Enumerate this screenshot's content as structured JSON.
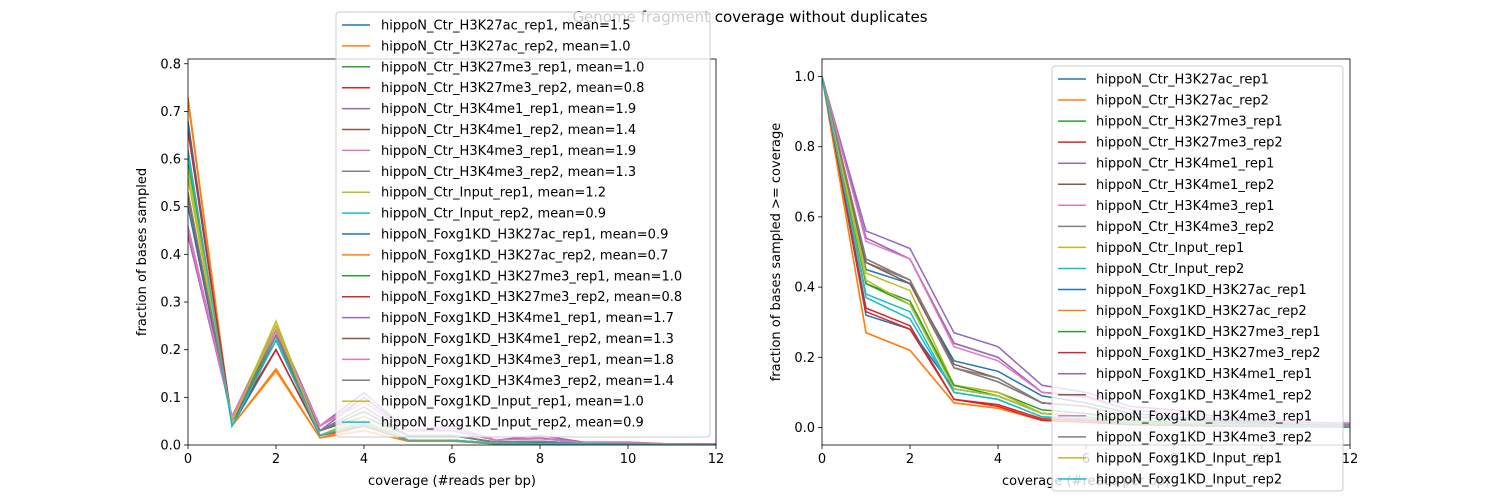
{
  "figure_title": "Genome fragment coverage without duplicates",
  "colors": [
    "#1f77b4",
    "#ff7f0e",
    "#2ca02c",
    "#d62728",
    "#9467bd",
    "#8c564b",
    "#e377c2",
    "#7f7f7f",
    "#bcbd22",
    "#17becf"
  ],
  "chart_data": [
    {
      "type": "line",
      "xlabel": "coverage (#reads per bp)",
      "ylabel": "fraction of bases sampled",
      "xlim": [
        0,
        12
      ],
      "ylim": [
        0,
        0.81
      ],
      "xticks": [
        "0",
        "2",
        "4",
        "6",
        "8",
        "10",
        "12"
      ],
      "yticks": [
        "0.0",
        "0.1",
        "0.2",
        "0.3",
        "0.4",
        "0.5",
        "0.6",
        "0.7",
        "0.8"
      ],
      "grid": false,
      "legend": "top-center",
      "x": [
        0,
        1,
        2,
        3,
        4,
        5,
        6,
        7,
        8,
        9,
        10,
        11,
        12
      ],
      "series": [
        {
          "name": "hippoN_Ctr_H3K27ac_rep1, mean=1.5",
          "values": [
            0.5,
            0.05,
            0.22,
            0.03,
            0.06,
            0.02,
            0.02,
            0.005,
            0.005,
            0.003,
            0.002,
            0.001,
            0.001
          ]
        },
        {
          "name": "hippoN_Ctr_H3K27ac_rep2, mean=1.0",
          "values": [
            0.72,
            0.04,
            0.16,
            0.015,
            0.04,
            0.01,
            0.01,
            0.003,
            0.003,
            0.002,
            0.001,
            0.001,
            0.0
          ]
        },
        {
          "name": "hippoN_Ctr_H3K27me3_rep1, mean=1.0",
          "values": [
            0.59,
            0.05,
            0.24,
            0.02,
            0.05,
            0.01,
            0.01,
            0.004,
            0.003,
            0.002,
            0.001,
            0.001,
            0.0
          ]
        },
        {
          "name": "hippoN_Ctr_H3K27me3_rep2, mean=0.8",
          "values": [
            0.66,
            0.05,
            0.2,
            0.02,
            0.04,
            0.01,
            0.01,
            0.003,
            0.002,
            0.002,
            0.001,
            0.0,
            0.0
          ]
        },
        {
          "name": "hippoN_Ctr_H3K4me1_rep1, mean=1.9",
          "values": [
            0.44,
            0.06,
            0.25,
            0.04,
            0.11,
            0.03,
            0.04,
            0.01,
            0.02,
            0.006,
            0.006,
            0.002,
            0.002
          ]
        },
        {
          "name": "hippoN_Ctr_H3K4me1_rep2, mean=1.4",
          "values": [
            0.52,
            0.05,
            0.23,
            0.03,
            0.07,
            0.02,
            0.02,
            0.006,
            0.008,
            0.003,
            0.003,
            0.001,
            0.001
          ]
        },
        {
          "name": "hippoN_Ctr_H3K4me3_rep1, mean=1.9",
          "values": [
            0.46,
            0.06,
            0.24,
            0.04,
            0.1,
            0.03,
            0.04,
            0.01,
            0.015,
            0.005,
            0.005,
            0.002,
            0.002
          ]
        },
        {
          "name": "hippoN_Ctr_H3K4me3_rep2, mean=1.3",
          "values": [
            0.52,
            0.05,
            0.23,
            0.03,
            0.08,
            0.02,
            0.02,
            0.006,
            0.008,
            0.003,
            0.003,
            0.001,
            0.001
          ]
        },
        {
          "name": "hippoN_Ctr_Input_rep1, mean=1.2",
          "values": [
            0.56,
            0.05,
            0.26,
            0.02,
            0.06,
            0.01,
            0.01,
            0.004,
            0.004,
            0.002,
            0.001,
            0.001,
            0.0
          ]
        },
        {
          "name": "hippoN_Ctr_Input_rep2, mean=0.9",
          "values": [
            0.61,
            0.04,
            0.22,
            0.02,
            0.05,
            0.01,
            0.01,
            0.003,
            0.003,
            0.002,
            0.001,
            0.0,
            0.0
          ]
        },
        {
          "name": "hippoN_Foxg1KD_H3K27ac_rep1, mean=0.9",
          "values": [
            0.68,
            0.04,
            0.2,
            0.02,
            0.05,
            0.01,
            0.01,
            0.004,
            0.004,
            0.002,
            0.002,
            0.001,
            0.001
          ]
        },
        {
          "name": "hippoN_Foxg1KD_H3K27ac_rep2, mean=0.7",
          "values": [
            0.73,
            0.04,
            0.155,
            0.015,
            0.03,
            0.008,
            0.008,
            0.002,
            0.002,
            0.001,
            0.001,
            0.0,
            0.0
          ]
        },
        {
          "name": "hippoN_Foxg1KD_H3K27me3_rep1, mean=1.0",
          "values": [
            0.59,
            0.05,
            0.22,
            0.02,
            0.05,
            0.01,
            0.01,
            0.003,
            0.003,
            0.002,
            0.001,
            0.0,
            0.0
          ]
        },
        {
          "name": "hippoN_Foxg1KD_H3K27me3_rep2, mean=0.8",
          "values": [
            0.66,
            0.05,
            0.2,
            0.02,
            0.04,
            0.01,
            0.01,
            0.003,
            0.002,
            0.001,
            0.001,
            0.0,
            0.0
          ]
        },
        {
          "name": "hippoN_Foxg1KD_H3K4me1_rep1, mean=1.7",
          "values": [
            0.44,
            0.06,
            0.24,
            0.03,
            0.1,
            0.03,
            0.03,
            0.01,
            0.014,
            0.005,
            0.005,
            0.002,
            0.002
          ]
        },
        {
          "name": "hippoN_Foxg1KD_H3K4me1_rep2, mean=1.3",
          "values": [
            0.52,
            0.05,
            0.23,
            0.03,
            0.07,
            0.02,
            0.02,
            0.006,
            0.007,
            0.003,
            0.003,
            0.001,
            0.001
          ]
        },
        {
          "name": "hippoN_Foxg1KD_H3K4me3_rep1, mean=1.8",
          "values": [
            0.45,
            0.06,
            0.24,
            0.04,
            0.09,
            0.03,
            0.035,
            0.01,
            0.013,
            0.005,
            0.005,
            0.002,
            0.002
          ]
        },
        {
          "name": "hippoN_Foxg1KD_H3K4me3_rep2, mean=1.4",
          "values": [
            0.53,
            0.05,
            0.23,
            0.03,
            0.07,
            0.02,
            0.02,
            0.006,
            0.008,
            0.003,
            0.003,
            0.001,
            0.001
          ]
        },
        {
          "name": "hippoN_Foxg1KD_Input_rep1, mean=1.0",
          "values": [
            0.58,
            0.05,
            0.25,
            0.02,
            0.05,
            0.01,
            0.01,
            0.004,
            0.003,
            0.002,
            0.001,
            0.001,
            0.0
          ]
        },
        {
          "name": "hippoN_Foxg1KD_Input_rep2, mean=0.9",
          "values": [
            0.62,
            0.04,
            0.22,
            0.02,
            0.045,
            0.01,
            0.01,
            0.003,
            0.003,
            0.002,
            0.001,
            0.0,
            0.0
          ]
        }
      ]
    },
    {
      "type": "line",
      "xlabel": "coverage (#reads per bp)",
      "ylabel": "fraction of bases sampled >= coverage",
      "xlim": [
        0,
        12
      ],
      "ylim": [
        -0.05,
        1.05
      ],
      "xticks": [
        "0",
        "2",
        "4",
        "6",
        "8",
        "10",
        "12"
      ],
      "yticks": [
        "0.0",
        "0.2",
        "0.4",
        "0.6",
        "0.8",
        "1.0"
      ],
      "grid": false,
      "legend": "top-right",
      "x": [
        0,
        1,
        2,
        3,
        4,
        5,
        6,
        7,
        8,
        9,
        10,
        11,
        12
      ],
      "series": [
        {
          "name": "hippoN_Ctr_H3K27ac_rep1",
          "values": [
            1.0,
            0.45,
            0.41,
            0.19,
            0.16,
            0.09,
            0.07,
            0.04,
            0.03,
            0.02,
            0.015,
            0.01,
            0.008
          ]
        },
        {
          "name": "hippoN_Ctr_H3K27ac_rep2",
          "values": [
            1.0,
            0.27,
            0.22,
            0.07,
            0.055,
            0.02,
            0.015,
            0.008,
            0.006,
            0.004,
            0.003,
            0.002,
            0.001
          ]
        },
        {
          "name": "hippoN_Ctr_H3K27me3_rep1",
          "values": [
            1.0,
            0.41,
            0.36,
            0.12,
            0.1,
            0.05,
            0.04,
            0.02,
            0.015,
            0.01,
            0.008,
            0.006,
            0.004
          ]
        },
        {
          "name": "hippoN_Ctr_H3K27me3_rep2",
          "values": [
            1.0,
            0.34,
            0.29,
            0.08,
            0.065,
            0.025,
            0.02,
            0.01,
            0.008,
            0.005,
            0.004,
            0.003,
            0.002
          ]
        },
        {
          "name": "hippoN_Ctr_H3K4me1_rep1",
          "values": [
            1.0,
            0.56,
            0.51,
            0.27,
            0.23,
            0.12,
            0.1,
            0.06,
            0.05,
            0.03,
            0.025,
            0.015,
            0.012
          ]
        },
        {
          "name": "hippoN_Ctr_H3K4me1_rep2",
          "values": [
            1.0,
            0.48,
            0.42,
            0.18,
            0.14,
            0.07,
            0.06,
            0.03,
            0.025,
            0.015,
            0.012,
            0.008,
            0.006
          ]
        },
        {
          "name": "hippoN_Ctr_H3K4me3_rep1",
          "values": [
            1.0,
            0.54,
            0.48,
            0.24,
            0.2,
            0.1,
            0.09,
            0.05,
            0.04,
            0.025,
            0.02,
            0.012,
            0.01
          ]
        },
        {
          "name": "hippoN_Ctr_H3K4me3_rep2",
          "values": [
            1.0,
            0.47,
            0.42,
            0.17,
            0.14,
            0.07,
            0.06,
            0.03,
            0.025,
            0.015,
            0.012,
            0.008,
            0.006
          ]
        },
        {
          "name": "hippoN_Ctr_Input_rep1",
          "values": [
            1.0,
            0.44,
            0.39,
            0.12,
            0.1,
            0.04,
            0.03,
            0.015,
            0.012,
            0.008,
            0.006,
            0.004,
            0.003
          ]
        },
        {
          "name": "hippoN_Ctr_Input_rep2",
          "values": [
            1.0,
            0.38,
            0.33,
            0.1,
            0.08,
            0.03,
            0.025,
            0.012,
            0.01,
            0.006,
            0.005,
            0.003,
            0.002
          ]
        },
        {
          "name": "hippoN_Foxg1KD_H3K27ac_rep1",
          "values": [
            1.0,
            0.32,
            0.28,
            0.11,
            0.09,
            0.04,
            0.03,
            0.015,
            0.012,
            0.008,
            0.006,
            0.004,
            0.003
          ]
        },
        {
          "name": "hippoN_Foxg1KD_H3K27ac_rep2",
          "values": [
            1.0,
            0.27,
            0.22,
            0.07,
            0.055,
            0.02,
            0.015,
            0.008,
            0.006,
            0.004,
            0.003,
            0.002,
            0.001
          ]
        },
        {
          "name": "hippoN_Foxg1KD_H3K27me3_rep1",
          "values": [
            1.0,
            0.41,
            0.35,
            0.12,
            0.09,
            0.04,
            0.03,
            0.015,
            0.012,
            0.008,
            0.006,
            0.004,
            0.003
          ]
        },
        {
          "name": "hippoN_Foxg1KD_H3K27me3_rep2",
          "values": [
            1.0,
            0.33,
            0.28,
            0.08,
            0.06,
            0.02,
            0.015,
            0.008,
            0.006,
            0.004,
            0.003,
            0.002,
            0.001
          ]
        },
        {
          "name": "hippoN_Foxg1KD_H3K4me1_rep1",
          "values": [
            1.0,
            0.54,
            0.48,
            0.24,
            0.2,
            0.1,
            0.09,
            0.05,
            0.04,
            0.025,
            0.02,
            0.012,
            0.01
          ]
        },
        {
          "name": "hippoN_Foxg1KD_H3K4me1_rep2",
          "values": [
            1.0,
            0.47,
            0.41,
            0.17,
            0.13,
            0.07,
            0.06,
            0.03,
            0.025,
            0.015,
            0.012,
            0.008,
            0.006
          ]
        },
        {
          "name": "hippoN_Foxg1KD_H3K4me3_rep1",
          "values": [
            1.0,
            0.53,
            0.48,
            0.23,
            0.19,
            0.1,
            0.085,
            0.05,
            0.04,
            0.025,
            0.02,
            0.012,
            0.01
          ]
        },
        {
          "name": "hippoN_Foxg1KD_H3K4me3_rep2",
          "values": [
            1.0,
            0.48,
            0.42,
            0.17,
            0.13,
            0.07,
            0.06,
            0.03,
            0.025,
            0.015,
            0.012,
            0.008,
            0.006
          ]
        },
        {
          "name": "hippoN_Foxg1KD_Input_rep1",
          "values": [
            1.0,
            0.42,
            0.35,
            0.11,
            0.09,
            0.04,
            0.03,
            0.015,
            0.012,
            0.008,
            0.006,
            0.004,
            0.003
          ]
        },
        {
          "name": "hippoN_Foxg1KD_Input_rep2",
          "values": [
            1.0,
            0.37,
            0.31,
            0.1,
            0.08,
            0.03,
            0.025,
            0.012,
            0.01,
            0.006,
            0.005,
            0.003,
            0.002
          ]
        }
      ]
    }
  ]
}
